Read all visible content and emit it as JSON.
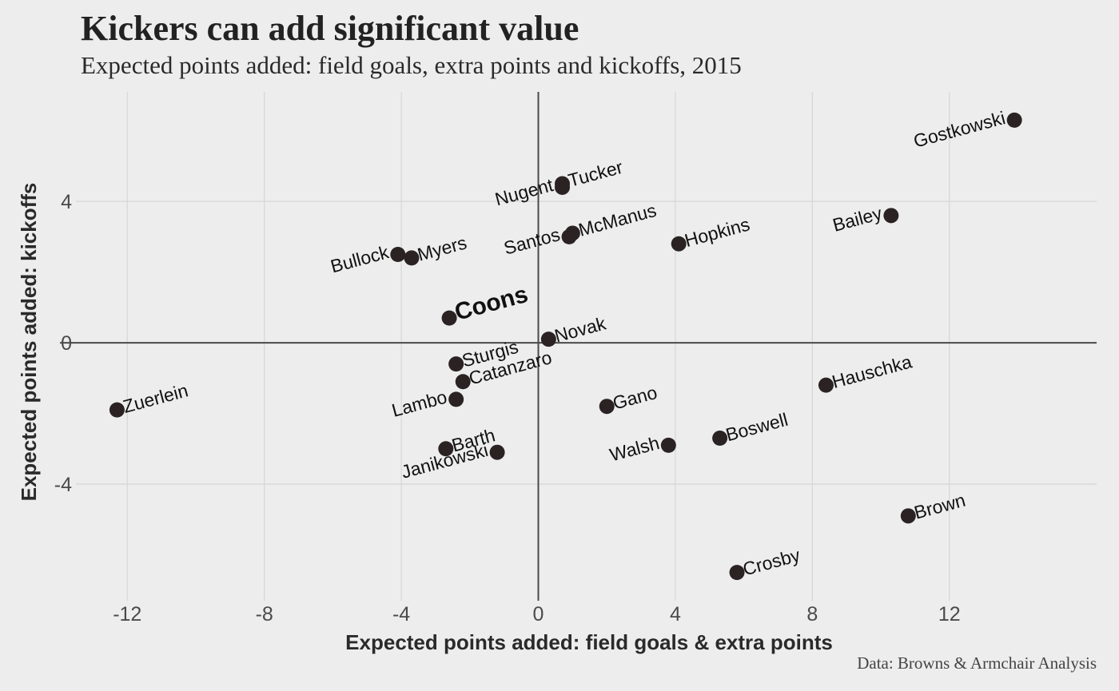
{
  "title": "Kickers can add significant value",
  "subtitle": "Expected points added: field goals, extra points and kickoffs, 2015",
  "caption": "Data: Browns & Armchair Analysis",
  "colors": {
    "background": "#ededed",
    "grid": "#d6d6d6",
    "zero_line": "#4a4a4a",
    "point": "#2b2323",
    "highlight": "#d7261e"
  },
  "chart_data": {
    "type": "scatter",
    "xlabel": "Expected points added: field goals & extra points",
    "ylabel": "Expected points added: kickoffs",
    "xlim": [
      -13.5,
      16.3
    ],
    "ylim": [
      -7.3,
      7.1
    ],
    "xticks": [
      -12,
      -8,
      -4,
      0,
      4,
      8,
      12
    ],
    "yticks": [
      -4,
      0,
      4
    ],
    "grid": true,
    "highlight": "Coons",
    "points": [
      {
        "name": "Gostkowski",
        "x": 13.9,
        "y": 6.3,
        "label_side": "left"
      },
      {
        "name": "Bailey",
        "x": 10.3,
        "y": 3.6,
        "label_side": "left"
      },
      {
        "name": "Tucker",
        "x": 0.7,
        "y": 4.5,
        "label_side": "right"
      },
      {
        "name": "Nugent",
        "x": 0.7,
        "y": 4.4,
        "label_side": "left"
      },
      {
        "name": "McManus",
        "x": 1.0,
        "y": 3.1,
        "label_side": "right"
      },
      {
        "name": "Santos",
        "x": 0.9,
        "y": 3.0,
        "label_side": "left"
      },
      {
        "name": "Hopkins",
        "x": 4.1,
        "y": 2.8,
        "label_side": "right"
      },
      {
        "name": "Bullock",
        "x": -4.1,
        "y": 2.5,
        "label_side": "left"
      },
      {
        "name": "Myers",
        "x": -3.7,
        "y": 2.4,
        "label_side": "right"
      },
      {
        "name": "Coons",
        "x": -2.6,
        "y": 0.7,
        "label_side": "right"
      },
      {
        "name": "Novak",
        "x": 0.3,
        "y": 0.1,
        "label_side": "right"
      },
      {
        "name": "Sturgis",
        "x": -2.4,
        "y": -0.6,
        "label_side": "right"
      },
      {
        "name": "Catanzaro",
        "x": -2.2,
        "y": -1.1,
        "label_side": "right"
      },
      {
        "name": "Lambo",
        "x": -2.4,
        "y": -1.6,
        "label_side": "left"
      },
      {
        "name": "Hauschka",
        "x": 8.4,
        "y": -1.2,
        "label_side": "right"
      },
      {
        "name": "Zuerlein",
        "x": -12.3,
        "y": -1.9,
        "label_side": "right"
      },
      {
        "name": "Gano",
        "x": 2.0,
        "y": -1.8,
        "label_side": "right"
      },
      {
        "name": "Boswell",
        "x": 5.3,
        "y": -2.7,
        "label_side": "right"
      },
      {
        "name": "Walsh",
        "x": 3.8,
        "y": -2.9,
        "label_side": "left"
      },
      {
        "name": "Barth",
        "x": -2.7,
        "y": -3.0,
        "label_side": "right"
      },
      {
        "name": "Janikowski",
        "x": -1.2,
        "y": -3.1,
        "label_side": "left"
      },
      {
        "name": "Brown",
        "x": 10.8,
        "y": -4.9,
        "label_side": "right"
      },
      {
        "name": "Crosby",
        "x": 5.8,
        "y": -6.5,
        "label_side": "right"
      }
    ]
  }
}
